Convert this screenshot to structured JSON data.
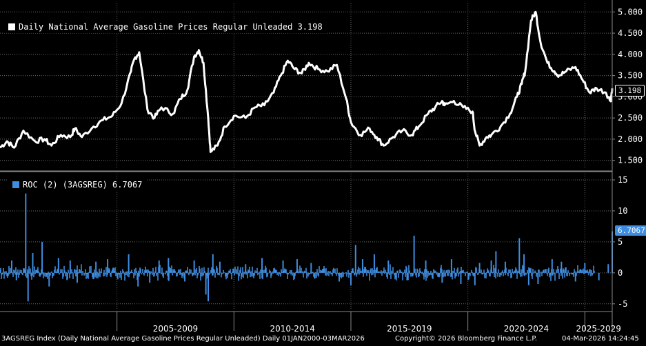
{
  "chart_data": [
    {
      "type": "line",
      "legend": "Daily National Average Gasoline Prices Regular Unleaded 3.198",
      "color": "#ffffff",
      "last_value_tag": "3.198",
      "y_ticks": [
        "1.500",
        "2.000",
        "2.500",
        "3.000",
        "3.500",
        "4.000",
        "4.500",
        "5.000"
      ],
      "ylim": [
        1.3,
        5.2
      ],
      "xlim": [
        2000.0,
        2026.17
      ],
      "series": [
        {
          "x": [
            2000.0,
            2000.3,
            2000.6,
            2001.0,
            2001.5,
            2001.9,
            2002.2,
            2002.6,
            2003.0,
            2003.2,
            2003.5,
            2004.0,
            2004.4,
            2004.8,
            2005.2,
            2005.6,
            2005.75,
            2005.95,
            2006.3,
            2006.6,
            2006.9,
            2007.4,
            2007.7,
            2008.0,
            2008.3,
            2008.5,
            2008.7,
            2008.9,
            2009.0,
            2009.3,
            2009.6,
            2010.0,
            2010.5,
            2010.9,
            2011.3,
            2011.7,
            2012.0,
            2012.3,
            2012.6,
            2012.9,
            2013.2,
            2013.6,
            2014.0,
            2014.4,
            2014.8,
            2015.0,
            2015.4,
            2015.8,
            2016.1,
            2016.4,
            2016.8,
            2017.2,
            2017.6,
            2017.9,
            2018.3,
            2018.6,
            2018.9,
            2019.0,
            2019.4,
            2019.8,
            2020.2,
            2020.3,
            2020.5,
            2020.8,
            2021.0,
            2021.4,
            2021.8,
            2022.1,
            2022.3,
            2022.45,
            2022.7,
            2022.9,
            2023.1,
            2023.4,
            2023.7,
            2023.9,
            2024.2,
            2024.6,
            2024.9,
            2025.2,
            2025.5,
            2025.9,
            2026.1,
            2026.17
          ],
          "y": [
            1.8,
            1.95,
            1.8,
            2.2,
            1.95,
            2.0,
            1.85,
            2.1,
            2.05,
            2.25,
            2.05,
            2.3,
            2.45,
            2.55,
            2.85,
            3.6,
            3.9,
            4.05,
            2.7,
            2.5,
            2.75,
            2.6,
            2.95,
            3.15,
            3.95,
            4.1,
            3.8,
            2.5,
            1.7,
            1.85,
            2.3,
            2.55,
            2.5,
            2.75,
            2.8,
            3.1,
            3.5,
            3.85,
            3.65,
            3.55,
            3.8,
            3.65,
            3.6,
            3.75,
            2.95,
            2.4,
            2.1,
            2.25,
            2.05,
            1.85,
            2.05,
            2.2,
            2.1,
            2.3,
            2.6,
            2.75,
            2.9,
            2.8,
            2.9,
            2.75,
            2.65,
            2.2,
            1.85,
            2.05,
            2.1,
            2.3,
            2.6,
            3.0,
            3.3,
            3.6,
            4.8,
            5.0,
            4.3,
            3.8,
            3.6,
            3.5,
            3.6,
            3.7,
            3.4,
            3.1,
            3.2,
            3.1,
            2.9,
            3.198
          ]
        }
      ]
    },
    {
      "type": "bar",
      "legend": "ROC (2) (3AGSREG) 6.7067",
      "color": "#3e8de0",
      "last_value_tag": "6.7067",
      "y_ticks": [
        "15",
        "10",
        "5",
        "0",
        "-5"
      ],
      "ylim": [
        -5.8,
        16
      ],
      "xlim": [
        2000.0,
        2026.17
      ],
      "x_ticks": [
        "2005-2009",
        "2010-2014",
        "2015-2019",
        "2020-2024",
        "2025-2029"
      ],
      "baseline_noise": 0.9,
      "spikes": [
        {
          "x": 2000.5,
          "y": 2.0
        },
        {
          "x": 2000.7,
          "y": -1.2
        },
        {
          "x": 2001.1,
          "y": 12.8
        },
        {
          "x": 2001.2,
          "y": -4.6
        },
        {
          "x": 2001.4,
          "y": 3.2
        },
        {
          "x": 2001.8,
          "y": 5.0
        },
        {
          "x": 2002.1,
          "y": -2.2
        },
        {
          "x": 2002.5,
          "y": 2.4
        },
        {
          "x": 2003.0,
          "y": 2.0
        },
        {
          "x": 2003.3,
          "y": -1.6
        },
        {
          "x": 2004.1,
          "y": 1.8
        },
        {
          "x": 2004.6,
          "y": 2.2
        },
        {
          "x": 2005.5,
          "y": 3.0
        },
        {
          "x": 2005.9,
          "y": -2.2
        },
        {
          "x": 2006.4,
          "y": -1.6
        },
        {
          "x": 2006.8,
          "y": 2.0
        },
        {
          "x": 2007.2,
          "y": 2.4
        },
        {
          "x": 2007.9,
          "y": -1.4
        },
        {
          "x": 2008.3,
          "y": 2.0
        },
        {
          "x": 2008.8,
          "y": -3.5
        },
        {
          "x": 2008.9,
          "y": -4.6
        },
        {
          "x": 2009.1,
          "y": 3.0
        },
        {
          "x": 2009.4,
          "y": 1.8
        },
        {
          "x": 2010.5,
          "y": 1.4
        },
        {
          "x": 2011.2,
          "y": 2.4
        },
        {
          "x": 2012.1,
          "y": 2.0
        },
        {
          "x": 2012.7,
          "y": 2.2
        },
        {
          "x": 2013.3,
          "y": 1.6
        },
        {
          "x": 2014.5,
          "y": -1.4
        },
        {
          "x": 2015.0,
          "y": -2.0
        },
        {
          "x": 2015.2,
          "y": 4.5
        },
        {
          "x": 2015.5,
          "y": 2.2
        },
        {
          "x": 2016.0,
          "y": 3.0
        },
        {
          "x": 2016.6,
          "y": 2.0
        },
        {
          "x": 2017.4,
          "y": -1.2
        },
        {
          "x": 2017.7,
          "y": 6.0
        },
        {
          "x": 2018.2,
          "y": 2.0
        },
        {
          "x": 2018.9,
          "y": -1.6
        },
        {
          "x": 2019.3,
          "y": 2.2
        },
        {
          "x": 2019.7,
          "y": -1.8
        },
        {
          "x": 2020.3,
          "y": -2.0
        },
        {
          "x": 2020.5,
          "y": 1.6
        },
        {
          "x": 2021.0,
          "y": 2.0
        },
        {
          "x": 2021.2,
          "y": 3.5
        },
        {
          "x": 2021.6,
          "y": 1.8
        },
        {
          "x": 2022.2,
          "y": 5.6
        },
        {
          "x": 2022.4,
          "y": 3.0
        },
        {
          "x": 2022.6,
          "y": -2.0
        },
        {
          "x": 2023.0,
          "y": -1.8
        },
        {
          "x": 2023.6,
          "y": 2.2
        },
        {
          "x": 2024.0,
          "y": 1.8
        },
        {
          "x": 2024.6,
          "y": -1.4
        },
        {
          "x": 2025.0,
          "y": 1.6
        },
        {
          "x": 2025.6,
          "y": -1.2
        },
        {
          "x": 2026.0,
          "y": 1.4
        },
        {
          "x": 2026.17,
          "y": 6.7067
        }
      ]
    }
  ],
  "footer": {
    "left": "3AGSREG Index (Daily National Average Gasoline Prices Regular Unleaded) Daily 01JAN2000-03MAR2026",
    "center": "Copyright© 2026 Bloomberg Finance L.P.",
    "right": "04-Mar-2026 14:24:45"
  }
}
